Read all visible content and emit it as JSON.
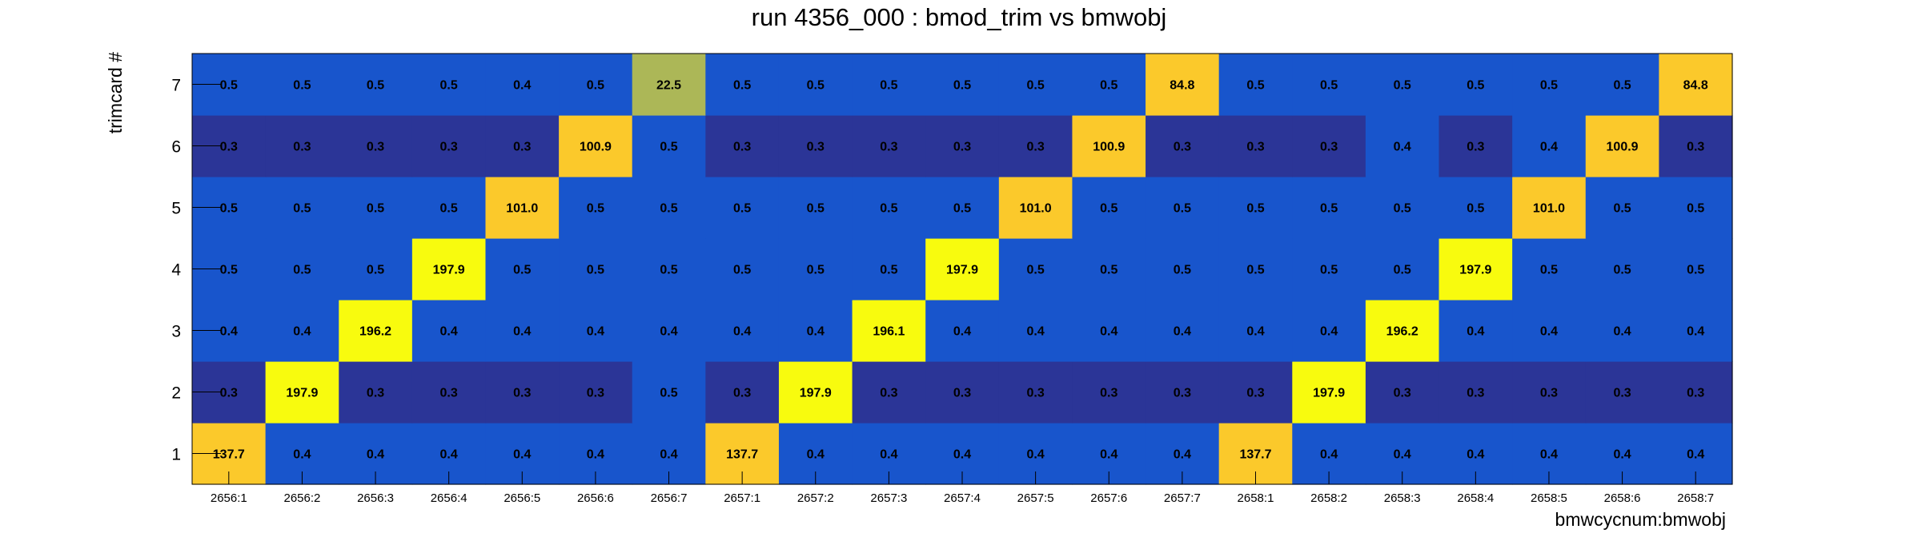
{
  "chart_data": {
    "type": "heatmap",
    "title": "run 4356_000 : bmod_trim vs bmwobj",
    "xlabel": "bmwcycnum:bmwobj",
    "ylabel": "trimcard #",
    "x_categories": [
      "2656:1",
      "2656:2",
      "2656:3",
      "2656:4",
      "2656:5",
      "2656:6",
      "2656:7",
      "2657:1",
      "2657:2",
      "2657:3",
      "2657:4",
      "2657:5",
      "2657:6",
      "2657:7",
      "2658:1",
      "2658:2",
      "2658:3",
      "2658:4",
      "2658:5",
      "2658:6",
      "2658:7"
    ],
    "y_categories": [
      "1",
      "2",
      "3",
      "4",
      "5",
      "6",
      "7"
    ],
    "values": [
      [
        "137.7",
        "0.4",
        "0.4",
        "0.4",
        "0.4",
        "0.4",
        "0.4",
        "137.7",
        "0.4",
        "0.4",
        "0.4",
        "0.4",
        "0.4",
        "0.4",
        "137.7",
        "0.4",
        "0.4",
        "0.4",
        "0.4",
        "0.4",
        "0.4"
      ],
      [
        "0.3",
        "197.9",
        "0.3",
        "0.3",
        "0.3",
        "0.3",
        "0.5",
        "0.3",
        "197.9",
        "0.3",
        "0.3",
        "0.3",
        "0.3",
        "0.3",
        "0.3",
        "197.9",
        "0.3",
        "0.3",
        "0.3",
        "0.3",
        "0.3"
      ],
      [
        "0.4",
        "0.4",
        "196.2",
        "0.4",
        "0.4",
        "0.4",
        "0.4",
        "0.4",
        "0.4",
        "196.1",
        "0.4",
        "0.4",
        "0.4",
        "0.4",
        "0.4",
        "0.4",
        "196.2",
        "0.4",
        "0.4",
        "0.4",
        "0.4"
      ],
      [
        "0.5",
        "0.5",
        "0.5",
        "197.9",
        "0.5",
        "0.5",
        "0.5",
        "0.5",
        "0.5",
        "0.5",
        "197.9",
        "0.5",
        "0.5",
        "0.5",
        "0.5",
        "0.5",
        "0.5",
        "197.9",
        "0.5",
        "0.5",
        "0.5"
      ],
      [
        "0.5",
        "0.5",
        "0.5",
        "0.5",
        "101.0",
        "0.5",
        "0.5",
        "0.5",
        "0.5",
        "0.5",
        "0.5",
        "101.0",
        "0.5",
        "0.5",
        "0.5",
        "0.5",
        "0.5",
        "0.5",
        "101.0",
        "0.5",
        "0.5"
      ],
      [
        "0.3",
        "0.3",
        "0.3",
        "0.3",
        "0.3",
        "100.9",
        "0.5",
        "0.3",
        "0.3",
        "0.3",
        "0.3",
        "0.3",
        "100.9",
        "0.3",
        "0.3",
        "0.3",
        "0.4",
        "0.3",
        "0.4",
        "100.9",
        "0.3"
      ],
      [
        "0.5",
        "0.5",
        "0.5",
        "0.5",
        "0.4",
        "0.5",
        "22.5",
        "0.5",
        "0.5",
        "0.5",
        "0.5",
        "0.5",
        "0.5",
        "84.8",
        "0.5",
        "0.5",
        "0.5",
        "0.5",
        "0.5",
        "0.5",
        "84.8"
      ]
    ],
    "colors": {
      "low_dark": "#2b3597",
      "low": "#1855cc",
      "mid": "#acb757",
      "high_orange": "#fbc92b",
      "high_yellow": "#f8fb0e",
      "frame": "#000000"
    },
    "colormap": "continuous blue to yellow",
    "legend": "none",
    "grid": false
  }
}
